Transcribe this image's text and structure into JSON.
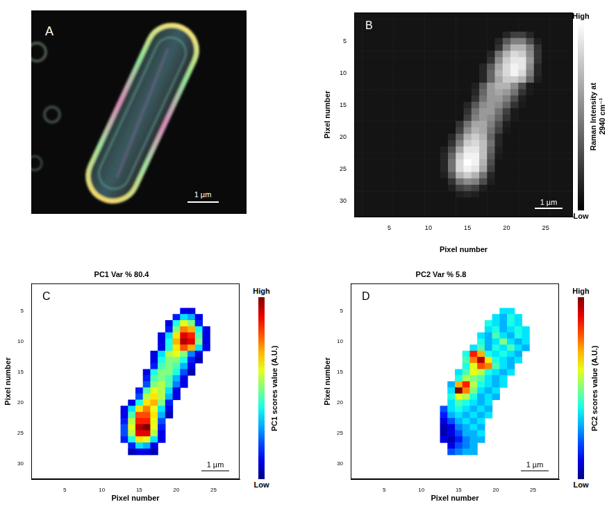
{
  "image_panel": {
    "panel_label": "A",
    "scale_bar": "1 µm"
  },
  "chart_data": [
    {
      "panel_label": "B",
      "type": "heatmap",
      "x_label": "Pixel number",
      "y_label": "Pixel number",
      "xlim": [
        0.5,
        28.5
      ],
      "ylim": [
        0.5,
        32.5
      ],
      "xticks": [
        5,
        10,
        15,
        20,
        25
      ],
      "yticks": [
        5,
        10,
        15,
        20,
        25,
        30
      ],
      "grid": false,
      "color": "gray",
      "scale_bar": "1 µm",
      "colorbar": {
        "title": "Raman Intensity at 2940 cm⁻¹",
        "range": [
          0,
          1
        ],
        "ticks": [
          {
            "value": 0,
            "label": "Low"
          },
          {
            "value": 1,
            "label": "High"
          }
        ]
      },
      "background": 0.08,
      "cells": [
        {
          "y": 4,
          "x_start": 20,
          "values": [
            0.15,
            0.25,
            0.25,
            0.15
          ]
        },
        {
          "y": 5,
          "x_start": 19,
          "values": [
            0.15,
            0.35,
            0.5,
            0.5,
            0.3,
            0.12
          ]
        },
        {
          "y": 6,
          "x_start": 19,
          "values": [
            0.2,
            0.5,
            0.7,
            0.7,
            0.5,
            0.2
          ]
        },
        {
          "y": 7,
          "x_start": 18,
          "values": [
            0.15,
            0.45,
            0.7,
            0.85,
            0.8,
            0.55,
            0.2
          ]
        },
        {
          "y": 8,
          "x_start": 18,
          "values": [
            0.2,
            0.55,
            0.8,
            0.9,
            0.9,
            0.6,
            0.2
          ]
        },
        {
          "y": 9,
          "x_start": 17,
          "values": [
            0.15,
            0.35,
            0.65,
            0.85,
            0.95,
            0.9,
            0.55,
            0.15
          ]
        },
        {
          "y": 10,
          "x_start": 17,
          "values": [
            0.15,
            0.4,
            0.7,
            0.85,
            0.95,
            0.85,
            0.5,
            0.15
          ]
        },
        {
          "y": 11,
          "x_start": 17,
          "values": [
            0.15,
            0.4,
            0.65,
            0.8,
            0.8,
            0.7,
            0.4,
            0.12
          ]
        },
        {
          "y": 12,
          "x_start": 16,
          "values": [
            0.12,
            0.35,
            0.6,
            0.7,
            0.7,
            0.55,
            0.3,
            0.1
          ]
        },
        {
          "y": 13,
          "x_start": 16,
          "values": [
            0.15,
            0.4,
            0.6,
            0.65,
            0.6,
            0.45,
            0.2,
            0.1
          ]
        },
        {
          "y": 14,
          "x_start": 16,
          "values": [
            0.2,
            0.45,
            0.6,
            0.6,
            0.5,
            0.3,
            0.12
          ]
        },
        {
          "y": 15,
          "x_start": 15,
          "values": [
            0.15,
            0.35,
            0.55,
            0.6,
            0.55,
            0.4,
            0.2,
            0.1
          ]
        },
        {
          "y": 16,
          "x_start": 15,
          "values": [
            0.2,
            0.45,
            0.6,
            0.6,
            0.45,
            0.25,
            0.1
          ]
        },
        {
          "y": 17,
          "x_start": 15,
          "values": [
            0.25,
            0.5,
            0.6,
            0.55,
            0.4,
            0.2,
            0.1
          ]
        },
        {
          "y": 18,
          "x_start": 14,
          "values": [
            0.2,
            0.45,
            0.65,
            0.65,
            0.5,
            0.3,
            0.12
          ]
        },
        {
          "y": 19,
          "x_start": 14,
          "values": [
            0.25,
            0.55,
            0.7,
            0.65,
            0.45,
            0.25,
            0.1
          ]
        },
        {
          "y": 20,
          "x_start": 13,
          "values": [
            0.15,
            0.4,
            0.7,
            0.8,
            0.7,
            0.4,
            0.15
          ]
        },
        {
          "y": 21,
          "x_start": 13,
          "values": [
            0.2,
            0.5,
            0.8,
            0.85,
            0.75,
            0.45,
            0.15
          ]
        },
        {
          "y": 22,
          "x_start": 12,
          "values": [
            0.12,
            0.3,
            0.65,
            0.9,
            0.9,
            0.75,
            0.4,
            0.12
          ]
        },
        {
          "y": 23,
          "x_start": 12,
          "values": [
            0.15,
            0.4,
            0.8,
            0.95,
            0.95,
            0.75,
            0.35,
            0.1
          ]
        },
        {
          "y": 24,
          "x_start": 12,
          "values": [
            0.15,
            0.45,
            0.85,
            1.0,
            0.95,
            0.7,
            0.3
          ]
        },
        {
          "y": 25,
          "x_start": 12,
          "values": [
            0.15,
            0.45,
            0.85,
            0.95,
            0.9,
            0.65,
            0.25
          ]
        },
        {
          "y": 26,
          "x_start": 12,
          "values": [
            0.12,
            0.35,
            0.7,
            0.8,
            0.7,
            0.45,
            0.15
          ]
        },
        {
          "y": 27,
          "x_start": 13,
          "values": [
            0.2,
            0.45,
            0.55,
            0.5,
            0.3,
            0.12
          ]
        },
        {
          "y": 28,
          "x_start": 13,
          "values": [
            0.12,
            0.25,
            0.3,
            0.25,
            0.12
          ]
        },
        {
          "y": 29,
          "x_start": 14,
          "values": [
            0.12,
            0.15,
            0.12
          ]
        }
      ]
    },
    {
      "panel_label": "C",
      "type": "heatmap",
      "title": "PC1 Var % 80.4",
      "x_label": "Pixel number",
      "y_label": "Pixel number",
      "xlim": [
        0.5,
        28.5
      ],
      "ylim": [
        0.5,
        32.5
      ],
      "xticks": [
        5,
        10,
        15,
        20,
        25
      ],
      "yticks": [
        5,
        10,
        15,
        20,
        25,
        30
      ],
      "grid": false,
      "color": "jet",
      "scale_bar": "1 µm",
      "colorbar": {
        "title": "PC1 scores value (A.U.)",
        "range": [
          0,
          1
        ],
        "ticks": [
          {
            "value": 0,
            "label": "Low"
          },
          {
            "value": 1,
            "label": "High"
          }
        ]
      },
      "cells": [
        {
          "y": 5,
          "x_start": 21,
          "values": [
            0.1,
            0.1
          ]
        },
        {
          "y": 6,
          "x_start": 20,
          "values": [
            0.15,
            0.35,
            0.3,
            0.1
          ]
        },
        {
          "y": 7,
          "x_start": 19,
          "values": [
            0.1,
            0.4,
            0.6,
            0.5,
            0.15
          ]
        },
        {
          "y": 8,
          "x_start": 19,
          "values": [
            0.15,
            0.5,
            0.75,
            0.7,
            0.4,
            0.1
          ]
        },
        {
          "y": 9,
          "x_start": 18,
          "values": [
            0.1,
            0.35,
            0.65,
            0.9,
            0.85,
            0.45,
            0.1
          ]
        },
        {
          "y": 10,
          "x_start": 18,
          "values": [
            0.1,
            0.4,
            0.7,
            0.95,
            0.9,
            0.5,
            0.1
          ]
        },
        {
          "y": 11,
          "x_start": 18,
          "values": [
            0.1,
            0.4,
            0.65,
            0.8,
            0.7,
            0.35,
            0.1
          ]
        },
        {
          "y": 12,
          "x_start": 17,
          "values": [
            0.1,
            0.35,
            0.55,
            0.6,
            0.5,
            0.25,
            0.1
          ]
        },
        {
          "y": 13,
          "x_start": 17,
          "values": [
            0.1,
            0.4,
            0.5,
            0.5,
            0.4,
            0.15,
            0.05
          ]
        },
        {
          "y": 14,
          "x_start": 17,
          "values": [
            0.15,
            0.45,
            0.5,
            0.45,
            0.3,
            0.1
          ]
        },
        {
          "y": 15,
          "x_start": 16,
          "values": [
            0.1,
            0.4,
            0.5,
            0.5,
            0.4,
            0.2,
            0.05
          ]
        },
        {
          "y": 16,
          "x_start": 16,
          "values": [
            0.15,
            0.45,
            0.5,
            0.45,
            0.3,
            0.1
          ]
        },
        {
          "y": 17,
          "x_start": 16,
          "values": [
            0.2,
            0.5,
            0.55,
            0.45,
            0.25,
            0.1
          ]
        },
        {
          "y": 18,
          "x_start": 15,
          "values": [
            0.15,
            0.45,
            0.6,
            0.55,
            0.35,
            0.1
          ]
        },
        {
          "y": 19,
          "x_start": 15,
          "values": [
            0.2,
            0.55,
            0.65,
            0.55,
            0.3,
            0.1
          ]
        },
        {
          "y": 20,
          "x_start": 14,
          "values": [
            0.1,
            0.4,
            0.65,
            0.7,
            0.5,
            0.15
          ]
        },
        {
          "y": 21,
          "x_start": 13,
          "values": [
            0.1,
            0.35,
            0.65,
            0.75,
            0.6,
            0.35,
            0.1
          ]
        },
        {
          "y": 22,
          "x_start": 13,
          "values": [
            0.1,
            0.45,
            0.8,
            0.8,
            0.65,
            0.3,
            0.05
          ]
        },
        {
          "y": 23,
          "x_start": 13,
          "values": [
            0.15,
            0.55,
            0.85,
            0.85,
            0.6,
            0.2
          ]
        },
        {
          "y": 24,
          "x_start": 13,
          "values": [
            0.2,
            0.6,
            0.95,
            1.0,
            0.6,
            0.15
          ]
        },
        {
          "y": 25,
          "x_start": 13,
          "values": [
            0.2,
            0.55,
            0.9,
            0.9,
            0.55,
            0.1
          ]
        },
        {
          "y": 26,
          "x_start": 13,
          "values": [
            0.15,
            0.4,
            0.65,
            0.6,
            0.35,
            0.1
          ]
        },
        {
          "y": 27,
          "x_start": 14,
          "values": [
            0.15,
            0.35,
            0.3,
            0.1
          ]
        },
        {
          "y": 28,
          "x_start": 14,
          "values": [
            0.05,
            0.1,
            0.1,
            0.05
          ]
        }
      ]
    },
    {
      "panel_label": "D",
      "type": "heatmap",
      "title": "PC2 Var % 5.8",
      "x_label": "Pixel number",
      "y_label": "Pixel number",
      "xlim": [
        0.5,
        28.5
      ],
      "ylim": [
        0.5,
        32.5
      ],
      "xticks": [
        5,
        10,
        15,
        20,
        25
      ],
      "yticks": [
        5,
        10,
        15,
        20,
        25,
        30
      ],
      "grid": false,
      "color": "jet",
      "scale_bar": "1 µm",
      "colorbar": {
        "title": "PC2 scores value (A.U.)",
        "range": [
          0,
          1
        ],
        "ticks": [
          {
            "value": 0,
            "label": "Low"
          },
          {
            "value": 1,
            "label": "High"
          }
        ]
      },
      "cells": [
        {
          "y": 5,
          "x_start": 21,
          "values": [
            0.35,
            0.35
          ]
        },
        {
          "y": 6,
          "x_start": 20,
          "values": [
            0.35,
            0.3,
            0.4,
            0.35
          ]
        },
        {
          "y": 7,
          "x_start": 19,
          "values": [
            0.4,
            0.35,
            0.3,
            0.4,
            0.35
          ]
        },
        {
          "y": 8,
          "x_start": 19,
          "values": [
            0.35,
            0.4,
            0.3,
            0.35,
            0.4,
            0.35
          ]
        },
        {
          "y": 9,
          "x_start": 18,
          "values": [
            0.35,
            0.3,
            0.45,
            0.35,
            0.3,
            0.4,
            0.35
          ]
        },
        {
          "y": 10,
          "x_start": 18,
          "values": [
            0.4,
            0.3,
            0.35,
            0.5,
            0.35,
            0.3,
            0.35
          ]
        },
        {
          "y": 11,
          "x_start": 17,
          "values": [
            0.35,
            0.45,
            0.3,
            0.4,
            0.35,
            0.45,
            0.35,
            0.3
          ]
        },
        {
          "y": 12,
          "x_start": 16,
          "values": [
            0.4,
            0.85,
            0.7,
            0.4,
            0.35,
            0.4,
            0.35,
            0.3
          ]
        },
        {
          "y": 13,
          "x_start": 16,
          "values": [
            0.45,
            0.75,
            0.95,
            0.65,
            0.4,
            0.35,
            0.3,
            0.35
          ]
        },
        {
          "y": 14,
          "x_start": 16,
          "values": [
            0.4,
            0.6,
            0.8,
            0.75,
            0.45,
            0.35,
            0.3
          ]
        },
        {
          "y": 15,
          "x_start": 15,
          "values": [
            0.35,
            0.45,
            0.6,
            0.55,
            0.4,
            0.35,
            0.3,
            0.35
          ]
        },
        {
          "y": 16,
          "x_start": 15,
          "values": [
            0.4,
            0.55,
            0.5,
            0.45,
            0.35,
            0.3,
            0.35
          ]
        },
        {
          "y": 17,
          "x_start": 14,
          "values": [
            0.3,
            0.7,
            0.85,
            0.55,
            0.4,
            0.35,
            0.3,
            0.35
          ]
        },
        {
          "y": 18,
          "x_start": 14,
          "values": [
            0.35,
            1.0,
            0.75,
            0.5,
            0.35,
            0.3,
            0.35
          ]
        },
        {
          "y": 19,
          "x_start": 14,
          "values": [
            0.4,
            0.6,
            0.55,
            0.4,
            0.3,
            0.35,
            0.3
          ]
        },
        {
          "y": 20,
          "x_start": 14,
          "values": [
            0.35,
            0.45,
            0.4,
            0.35,
            0.3,
            0.35
          ]
        },
        {
          "y": 21,
          "x_start": 13,
          "values": [
            0.2,
            0.35,
            0.4,
            0.35,
            0.3,
            0.35,
            0.3
          ]
        },
        {
          "y": 22,
          "x_start": 13,
          "values": [
            0.15,
            0.3,
            0.35,
            0.3,
            0.35,
            0.3,
            0.35
          ]
        },
        {
          "y": 23,
          "x_start": 13,
          "values": [
            0.1,
            0.2,
            0.3,
            0.35,
            0.3,
            0.35
          ]
        },
        {
          "y": 24,
          "x_start": 13,
          "values": [
            0.05,
            0.1,
            0.25,
            0.3,
            0.35,
            0.3
          ]
        },
        {
          "y": 25,
          "x_start": 13,
          "values": [
            0.05,
            0.1,
            0.2,
            0.3,
            0.3,
            0.35
          ]
        },
        {
          "y": 26,
          "x_start": 13,
          "values": [
            0.1,
            0.05,
            0.15,
            0.25,
            0.3,
            0.3
          ]
        },
        {
          "y": 27,
          "x_start": 14,
          "values": [
            0.1,
            0.2,
            0.25,
            0.3
          ]
        },
        {
          "y": 28,
          "x_start": 14,
          "values": [
            0.2,
            0.25,
            0.3,
            0.3
          ]
        }
      ]
    }
  ]
}
